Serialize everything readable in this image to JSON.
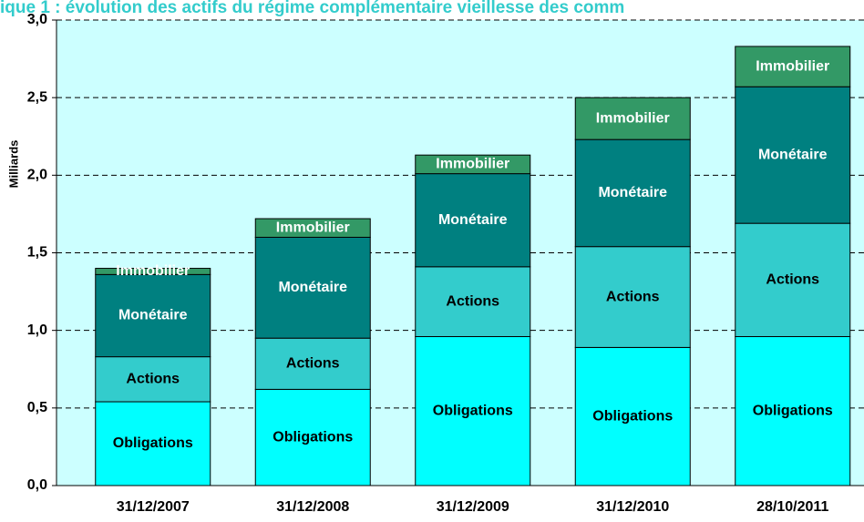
{
  "chart_data": {
    "type": "stacked_bar",
    "title": "ique 1 : évolution des actifs du régime complémentaire vieillesse des comm",
    "y_label": "Milliards",
    "categories": [
      "31/12/2007",
      "31/12/2008",
      "31/12/2009",
      "31/12/2010",
      "28/10/2011"
    ],
    "series": [
      {
        "name": "Obligations",
        "color": "#00ffff",
        "values": [
          0.54,
          0.62,
          0.96,
          0.89,
          0.96
        ]
      },
      {
        "name": "Actions",
        "color": "#33cccc",
        "values": [
          0.29,
          0.33,
          0.45,
          0.65,
          0.73
        ]
      },
      {
        "name": "Monétaire",
        "color": "#008080",
        "values": [
          0.53,
          0.65,
          0.6,
          0.69,
          0.88
        ]
      },
      {
        "name": "Immobilier",
        "color": "#339966",
        "values": [
          0.04,
          0.12,
          0.12,
          0.27,
          0.26
        ]
      }
    ],
    "ylim": [
      0,
      3
    ],
    "yticks": [
      {
        "value": 0,
        "label": "0,0"
      },
      {
        "value": 0.5,
        "label": "0,5"
      },
      {
        "value": 1,
        "label": "1,0"
      },
      {
        "value": 1.5,
        "label": "1,5"
      },
      {
        "value": 2,
        "label": "2,0"
      },
      {
        "value": 2.5,
        "label": "2,5"
      },
      {
        "value": 3,
        "label": "3,0"
      }
    ],
    "grid": true
  }
}
